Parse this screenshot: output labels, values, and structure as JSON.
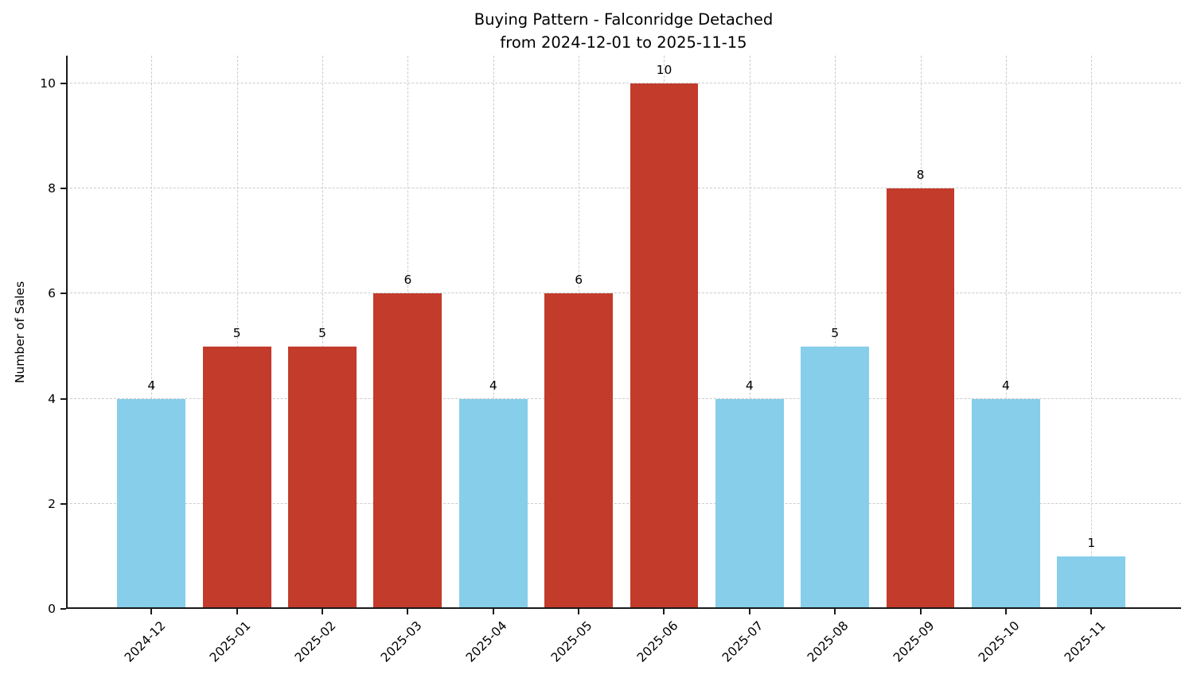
{
  "title": {
    "line1": "Buying Pattern - Falconridge Detached",
    "line2": "from 2024-12-01 to 2025-11-15"
  },
  "chart_data": {
    "type": "bar",
    "title": "Buying Pattern - Falconridge Detached\nfrom 2024-12-01 to 2025-11-15",
    "xlabel": "",
    "ylabel": "Number of Sales",
    "categories": [
      "2024-12",
      "2025-01",
      "2025-02",
      "2025-03",
      "2025-04",
      "2025-05",
      "2025-06",
      "2025-07",
      "2025-08",
      "2025-09",
      "2025-10",
      "2025-11"
    ],
    "values": [
      4,
      5,
      5,
      6,
      4,
      6,
      10,
      4,
      5,
      8,
      4,
      1
    ],
    "bar_labels": [
      4,
      5,
      5,
      6,
      4,
      6,
      10,
      4,
      5,
      8,
      4,
      1
    ],
    "bar_colors": [
      "#87CEEB",
      "#C23B2B",
      "#C23B2B",
      "#C23B2B",
      "#87CEEB",
      "#C23B2B",
      "#C23B2B",
      "#87CEEB",
      "#87CEEB",
      "#C23B2B",
      "#87CEEB",
      "#87CEEB"
    ],
    "colors": {
      "low": "#87CEEB",
      "high": "#C23B2B",
      "grid": "#cccccc",
      "spine": "#1a1a1a",
      "text": "#000000"
    },
    "ylim": [
      0,
      10.53
    ],
    "yticks": [
      0,
      2,
      4,
      6,
      8,
      10
    ],
    "grid": true,
    "grid_style": "dashed",
    "legend": false,
    "x_tick_rotation_deg": 45
  }
}
